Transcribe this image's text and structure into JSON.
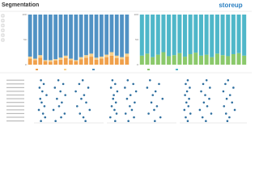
{
  "header": {
    "title": "Segmentation",
    "logo": "storeup"
  },
  "chart_data": [
    {
      "type": "bar",
      "stacked": true,
      "ylim": [
        0,
        100
      ],
      "yticks": [
        0,
        50,
        100
      ],
      "categories": [
        null,
        null,
        null,
        null,
        null,
        null,
        null,
        null,
        null,
        null,
        null,
        null,
        null,
        null,
        null,
        null,
        null,
        null,
        null,
        null
      ],
      "series": [
        {
          "color": "#f0a04b",
          "values": [
            12,
            9,
            14,
            7,
            6,
            8,
            10,
            13,
            9,
            7,
            11,
            14,
            16,
            10,
            12,
            15,
            18,
            13,
            11,
            16
          ]
        },
        {
          "color": "#f7d08a",
          "values": [
            4,
            3,
            5,
            2,
            3,
            3,
            4,
            5,
            3,
            2,
            4,
            5,
            6,
            4,
            4,
            5,
            7,
            5,
            4,
            6
          ]
        },
        {
          "color": "#5192c4",
          "values": [
            84,
            88,
            81,
            91,
            91,
            89,
            86,
            82,
            88,
            91,
            85,
            81,
            78,
            86,
            84,
            80,
            75,
            82,
            85,
            78
          ]
        }
      ]
    },
    {
      "type": "bar",
      "stacked": true,
      "ylim": [
        0,
        100
      ],
      "yticks": [
        0,
        50,
        100
      ],
      "categories": [
        null,
        null,
        null,
        null,
        null,
        null,
        null,
        null,
        null,
        null,
        null,
        null,
        null,
        null,
        null,
        null,
        null,
        null,
        null,
        null
      ],
      "series": [
        {
          "color": "#8bc96b",
          "values": [
            18,
            22,
            15,
            20,
            25,
            17,
            19,
            23,
            16,
            21,
            24,
            18,
            20,
            15,
            22,
            19,
            17,
            21,
            23,
            18
          ]
        },
        {
          "color": "#4fb7c9",
          "values": [
            82,
            78,
            85,
            80,
            75,
            83,
            81,
            77,
            84,
            79,
            76,
            82,
            80,
            85,
            78,
            81,
            83,
            79,
            77,
            82
          ]
        }
      ]
    },
    {
      "type": "dot",
      "xlim": [
        0,
        100
      ],
      "categories": [
        null,
        null,
        null,
        null,
        null,
        null,
        null,
        null,
        null,
        null,
        null,
        null
      ],
      "series": [
        {
          "color": "#2f6f9f",
          "values": [
            10,
            14,
            8,
            12,
            18,
            9,
            11,
            15,
            7,
            13,
            16,
            10
          ]
        },
        {
          "color": "#2f6f9f",
          "values": [
            35,
            42,
            30,
            38,
            45,
            33,
            40,
            36,
            28,
            44,
            39,
            31
          ]
        },
        {
          "color": "#2f6f9f",
          "values": [
            70,
            65,
            78,
            60,
            72,
            68,
            75,
            62,
            80,
            66,
            71,
            74
          ]
        }
      ]
    },
    {
      "type": "dot",
      "xlim": [
        0,
        100
      ],
      "categories": [
        null,
        null,
        null,
        null,
        null,
        null,
        null,
        null,
        null,
        null,
        null,
        null
      ],
      "series": [
        {
          "color": "#2f6f9f",
          "values": [
            8,
            12,
            6,
            15,
            10,
            9,
            13,
            7,
            11,
            14,
            5,
            12
          ]
        },
        {
          "color": "#2f6f9f",
          "values": [
            30,
            38,
            26,
            42,
            34,
            29,
            40,
            33,
            36,
            27,
            39,
            31
          ]
        },
        {
          "color": "#2f6f9f",
          "values": [
            62,
            75,
            58,
            70,
            66,
            80,
            64,
            72,
            68,
            60,
            77,
            69
          ]
        }
      ]
    },
    {
      "type": "dot",
      "xlim": [
        0,
        100
      ],
      "categories": [
        null,
        null,
        null,
        null,
        null,
        null,
        null,
        null,
        null,
        null,
        null,
        null
      ],
      "series": [
        {
          "color": "#2f6f9f",
          "values": [
            12,
            9,
            15,
            11,
            8,
            14,
            10,
            13,
            7,
            16,
            9,
            12
          ]
        },
        {
          "color": "#2f6f9f",
          "values": [
            40,
            35,
            45,
            32,
            38,
            44,
            36,
            41,
            30,
            47,
            34,
            39
          ]
        },
        {
          "color": "#2f6f9f",
          "values": [
            72,
            68,
            80,
            65,
            75,
            70,
            78,
            66,
            82,
            69,
            74,
            71
          ]
        }
      ]
    }
  ]
}
